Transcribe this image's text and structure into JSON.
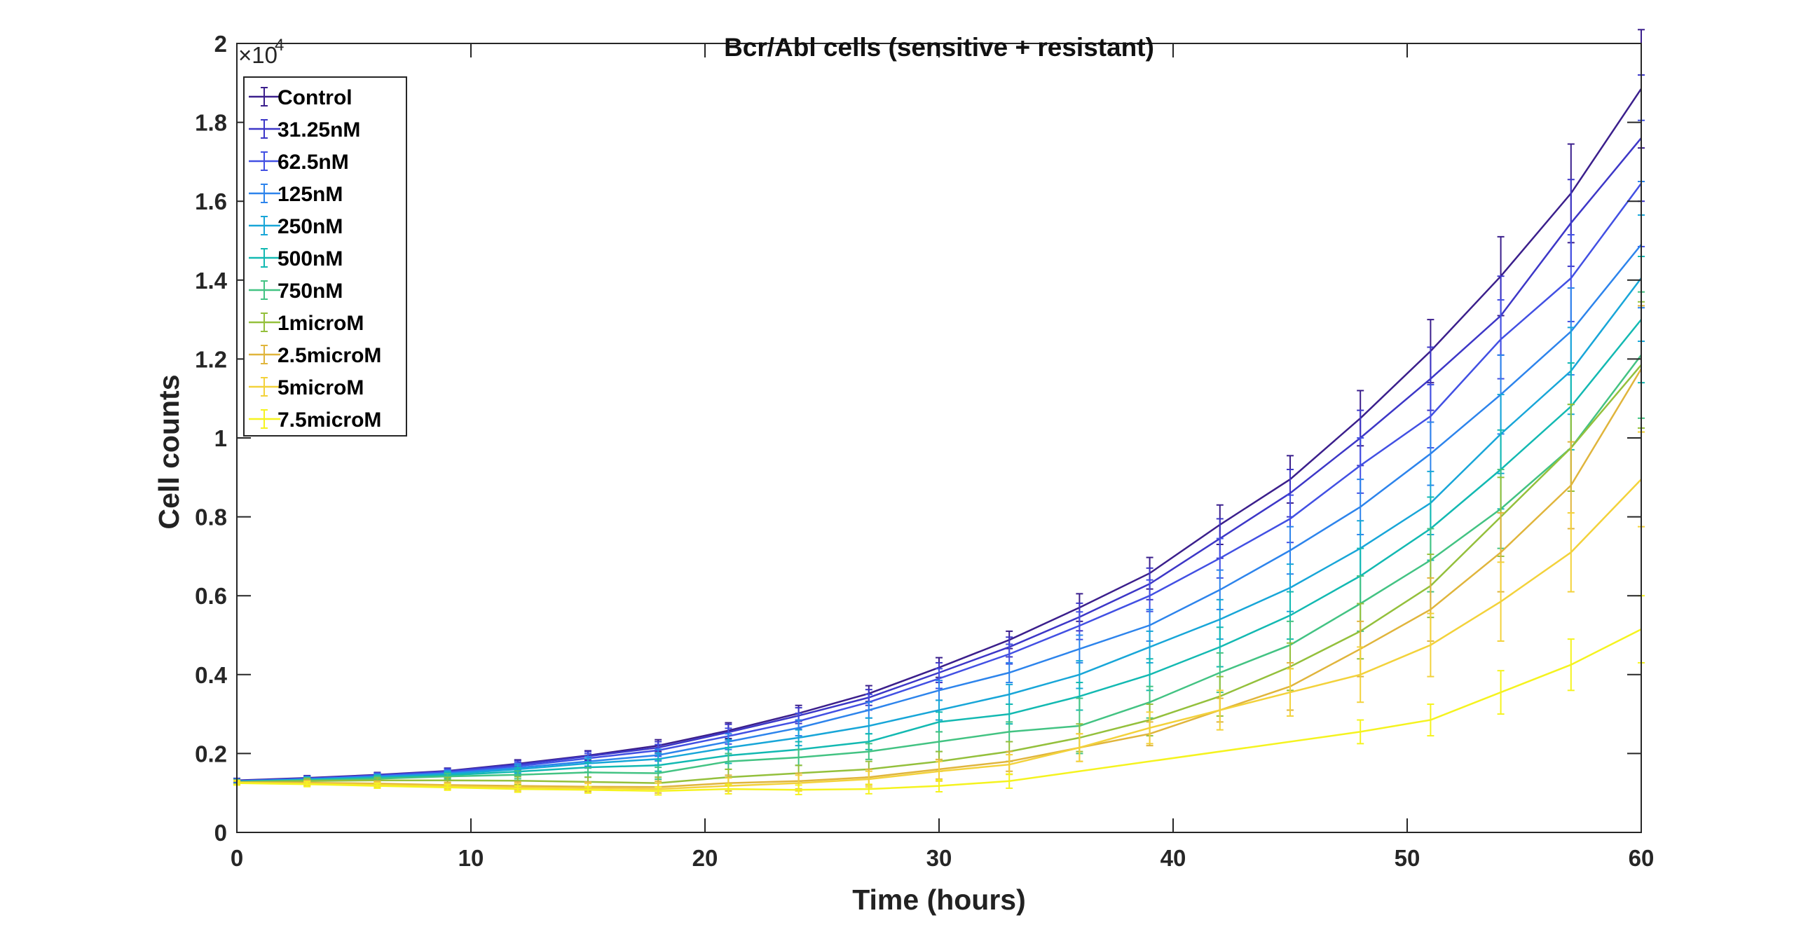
{
  "chart_data": {
    "type": "line",
    "title": "Bcr/Abl cells (sensitive + resistant)",
    "xlabel": "Time (hours)",
    "ylabel": "Cell counts",
    "y_exponent_base": "×10",
    "y_exponent_power": "4",
    "xlim": [
      0,
      60
    ],
    "ylim": [
      0,
      2
    ],
    "x_ticks": [
      0,
      10,
      20,
      30,
      40,
      50,
      60
    ],
    "x_tick_labels": [
      "0",
      "10",
      "20",
      "30",
      "40",
      "50",
      "60"
    ],
    "y_ticks": [
      0,
      0.2,
      0.4,
      0.6,
      0.8,
      1,
      1.2,
      1.4,
      1.6,
      1.8,
      2
    ],
    "y_tick_labels": [
      "0",
      "0.2",
      "0.4",
      "0.6",
      "0.8",
      "1",
      "1.2",
      "1.4",
      "1.6",
      "1.8",
      "2"
    ],
    "grid": false,
    "legend_position": "top-left",
    "series": [
      {
        "name": "Control",
        "color": "#3b1f8c",
        "x": [
          0,
          3,
          6,
          9,
          12,
          15,
          18,
          21,
          24,
          27,
          30,
          33,
          36,
          39,
          42,
          45,
          48,
          51,
          54,
          57,
          60
        ],
        "y": [
          0.132,
          0.138,
          0.146,
          0.156,
          0.174,
          0.195,
          0.22,
          0.258,
          0.302,
          0.352,
          0.418,
          0.488,
          0.57,
          0.657,
          0.78,
          0.895,
          1.05,
          1.22,
          1.41,
          1.62,
          1.885
        ],
        "err": [
          0.005,
          0.006,
          0.006,
          0.007,
          0.01,
          0.012,
          0.015,
          0.02,
          0.02,
          0.02,
          0.025,
          0.022,
          0.035,
          0.04,
          0.05,
          0.06,
          0.07,
          0.08,
          0.1,
          0.125,
          0.15
        ]
      },
      {
        "name": "31.25nM",
        "color": "#3d37c7",
        "x": [
          0,
          3,
          6,
          9,
          12,
          15,
          18,
          21,
          24,
          27,
          30,
          33,
          36,
          39,
          42,
          45,
          48,
          51,
          54,
          57,
          60
        ],
        "y": [
          0.131,
          0.137,
          0.145,
          0.155,
          0.172,
          0.193,
          0.215,
          0.254,
          0.296,
          0.342,
          0.405,
          0.47,
          0.546,
          0.63,
          0.745,
          0.86,
          1.0,
          1.15,
          1.31,
          1.545,
          1.76
        ],
        "err": [
          0.005,
          0.006,
          0.006,
          0.007,
          0.01,
          0.012,
          0.015,
          0.02,
          0.02,
          0.02,
          0.025,
          0.025,
          0.035,
          0.04,
          0.05,
          0.06,
          0.07,
          0.08,
          0.1,
          0.11,
          0.16
        ]
      },
      {
        "name": "62.5nM",
        "color": "#4250e3",
        "x": [
          0,
          3,
          6,
          9,
          12,
          15,
          18,
          21,
          24,
          27,
          30,
          33,
          36,
          39,
          42,
          45,
          48,
          51,
          54,
          57,
          60
        ],
        "y": [
          0.13,
          0.136,
          0.144,
          0.153,
          0.168,
          0.188,
          0.208,
          0.244,
          0.282,
          0.33,
          0.39,
          0.452,
          0.524,
          0.6,
          0.695,
          0.795,
          0.93,
          1.055,
          1.25,
          1.405,
          1.645
        ],
        "err": [
          0.005,
          0.006,
          0.006,
          0.007,
          0.01,
          0.012,
          0.015,
          0.02,
          0.02,
          0.02,
          0.025,
          0.025,
          0.035,
          0.04,
          0.05,
          0.06,
          0.07,
          0.08,
          0.1,
          0.11,
          0.16
        ]
      },
      {
        "name": "125nM",
        "color": "#2d84ec",
        "x": [
          0,
          3,
          6,
          9,
          12,
          15,
          18,
          21,
          24,
          27,
          30,
          33,
          36,
          39,
          42,
          45,
          48,
          51,
          54,
          57,
          60
        ],
        "y": [
          0.13,
          0.135,
          0.142,
          0.15,
          0.164,
          0.18,
          0.196,
          0.23,
          0.265,
          0.31,
          0.36,
          0.405,
          0.465,
          0.525,
          0.615,
          0.715,
          0.825,
          0.96,
          1.11,
          1.27,
          1.49
        ],
        "err": [
          0.005,
          0.006,
          0.006,
          0.007,
          0.01,
          0.012,
          0.015,
          0.02,
          0.02,
          0.02,
          0.025,
          0.025,
          0.035,
          0.04,
          0.05,
          0.06,
          0.07,
          0.08,
          0.1,
          0.11,
          0.16
        ]
      },
      {
        "name": "250nM",
        "color": "#18a6d8",
        "x": [
          0,
          3,
          6,
          9,
          12,
          15,
          18,
          21,
          24,
          27,
          30,
          33,
          36,
          39,
          42,
          45,
          48,
          51,
          54,
          57,
          60
        ],
        "y": [
          0.129,
          0.134,
          0.14,
          0.148,
          0.16,
          0.175,
          0.186,
          0.215,
          0.24,
          0.27,
          0.31,
          0.35,
          0.4,
          0.47,
          0.54,
          0.62,
          0.72,
          0.835,
          1.01,
          1.17,
          1.405
        ],
        "err": [
          0.005,
          0.006,
          0.006,
          0.007,
          0.01,
          0.012,
          0.015,
          0.02,
          0.02,
          0.02,
          0.025,
          0.025,
          0.035,
          0.04,
          0.05,
          0.06,
          0.07,
          0.08,
          0.1,
          0.11,
          0.16
        ]
      },
      {
        "name": "500nM",
        "color": "#13b9b2",
        "x": [
          0,
          3,
          6,
          9,
          12,
          15,
          18,
          21,
          24,
          27,
          30,
          33,
          36,
          39,
          42,
          45,
          48,
          51,
          54,
          57,
          60
        ],
        "y": [
          0.128,
          0.133,
          0.138,
          0.145,
          0.154,
          0.165,
          0.17,
          0.195,
          0.21,
          0.23,
          0.28,
          0.3,
          0.345,
          0.4,
          0.47,
          0.55,
          0.65,
          0.77,
          0.92,
          1.08,
          1.3
        ],
        "err": [
          0.005,
          0.006,
          0.006,
          0.007,
          0.01,
          0.012,
          0.015,
          0.02,
          0.02,
          0.02,
          0.025,
          0.025,
          0.035,
          0.04,
          0.05,
          0.06,
          0.07,
          0.08,
          0.1,
          0.11,
          0.16
        ]
      },
      {
        "name": "750nM",
        "color": "#43c383",
        "x": [
          0,
          3,
          6,
          9,
          12,
          15,
          18,
          21,
          24,
          27,
          30,
          33,
          36,
          39,
          42,
          45,
          48,
          51,
          54,
          57,
          60
        ],
        "y": [
          0.128,
          0.132,
          0.136,
          0.142,
          0.146,
          0.152,
          0.15,
          0.18,
          0.19,
          0.205,
          0.23,
          0.255,
          0.27,
          0.33,
          0.405,
          0.475,
          0.58,
          0.69,
          0.82,
          0.975,
          1.21
        ],
        "err": [
          0.005,
          0.006,
          0.006,
          0.007,
          0.01,
          0.012,
          0.015,
          0.02,
          0.02,
          0.02,
          0.025,
          0.025,
          0.07,
          0.04,
          0.05,
          0.06,
          0.07,
          0.08,
          0.1,
          0.11,
          0.16
        ]
      },
      {
        "name": "1microM",
        "color": "#94c03c",
        "x": [
          0,
          3,
          6,
          9,
          12,
          15,
          18,
          21,
          24,
          27,
          30,
          33,
          36,
          39,
          42,
          45,
          48,
          51,
          54,
          57,
          60
        ],
        "y": [
          0.127,
          0.13,
          0.132,
          0.132,
          0.131,
          0.128,
          0.125,
          0.14,
          0.15,
          0.16,
          0.18,
          0.205,
          0.24,
          0.285,
          0.345,
          0.42,
          0.51,
          0.625,
          0.8,
          0.975,
          1.185
        ],
        "err": [
          0.005,
          0.006,
          0.006,
          0.007,
          0.01,
          0.012,
          0.015,
          0.02,
          0.02,
          0.02,
          0.025,
          0.025,
          0.035,
          0.04,
          0.05,
          0.06,
          0.07,
          0.08,
          0.1,
          0.11,
          0.16
        ]
      },
      {
        "name": "2.5microM",
        "color": "#e0b53c",
        "x": [
          0,
          3,
          6,
          9,
          12,
          15,
          18,
          21,
          24,
          27,
          30,
          33,
          36,
          39,
          42,
          45,
          48,
          51,
          54,
          57,
          60
        ],
        "y": [
          0.127,
          0.126,
          0.124,
          0.12,
          0.118,
          0.116,
          0.115,
          0.125,
          0.13,
          0.14,
          0.16,
          0.18,
          0.215,
          0.25,
          0.31,
          0.37,
          0.465,
          0.565,
          0.71,
          0.88,
          1.175
        ],
        "err": [
          0.005,
          0.006,
          0.006,
          0.007,
          0.01,
          0.012,
          0.015,
          0.02,
          0.02,
          0.02,
          0.025,
          0.025,
          0.035,
          0.03,
          0.03,
          0.06,
          0.07,
          0.08,
          0.1,
          0.11,
          0.16
        ]
      },
      {
        "name": "5microM",
        "color": "#f3d23b",
        "x": [
          0,
          3,
          6,
          9,
          12,
          15,
          18,
          21,
          24,
          27,
          30,
          33,
          36,
          39,
          42,
          45,
          48,
          51,
          54,
          57,
          60
        ],
        "y": [
          0.126,
          0.124,
          0.121,
          0.117,
          0.114,
          0.112,
          0.11,
          0.118,
          0.125,
          0.135,
          0.155,
          0.172,
          0.215,
          0.265,
          0.31,
          0.355,
          0.4,
          0.475,
          0.585,
          0.71,
          0.895
        ],
        "err": [
          0.005,
          0.006,
          0.006,
          0.007,
          0.01,
          0.012,
          0.015,
          0.02,
          0.02,
          0.02,
          0.025,
          0.025,
          0.035,
          0.04,
          0.05,
          0.06,
          0.07,
          0.08,
          0.1,
          0.1,
          0.12
        ]
      },
      {
        "name": "7.5microM",
        "color": "#f5f31f",
        "x": [
          0,
          3,
          6,
          9,
          12,
          15,
          18,
          21,
          24,
          27,
          30,
          33,
          48,
          51,
          54,
          57,
          60
        ],
        "y": [
          0.125,
          0.122,
          0.118,
          0.114,
          0.11,
          0.108,
          0.105,
          0.11,
          0.108,
          0.11,
          0.118,
          0.13,
          0.255,
          0.285,
          0.355,
          0.425,
          0.515
        ],
        "err": [
          0.005,
          0.006,
          0.006,
          0.007,
          0.008,
          0.008,
          0.01,
          0.012,
          0.012,
          0.012,
          0.015,
          0.018,
          0.03,
          0.04,
          0.055,
          0.065,
          0.085
        ]
      }
    ]
  }
}
